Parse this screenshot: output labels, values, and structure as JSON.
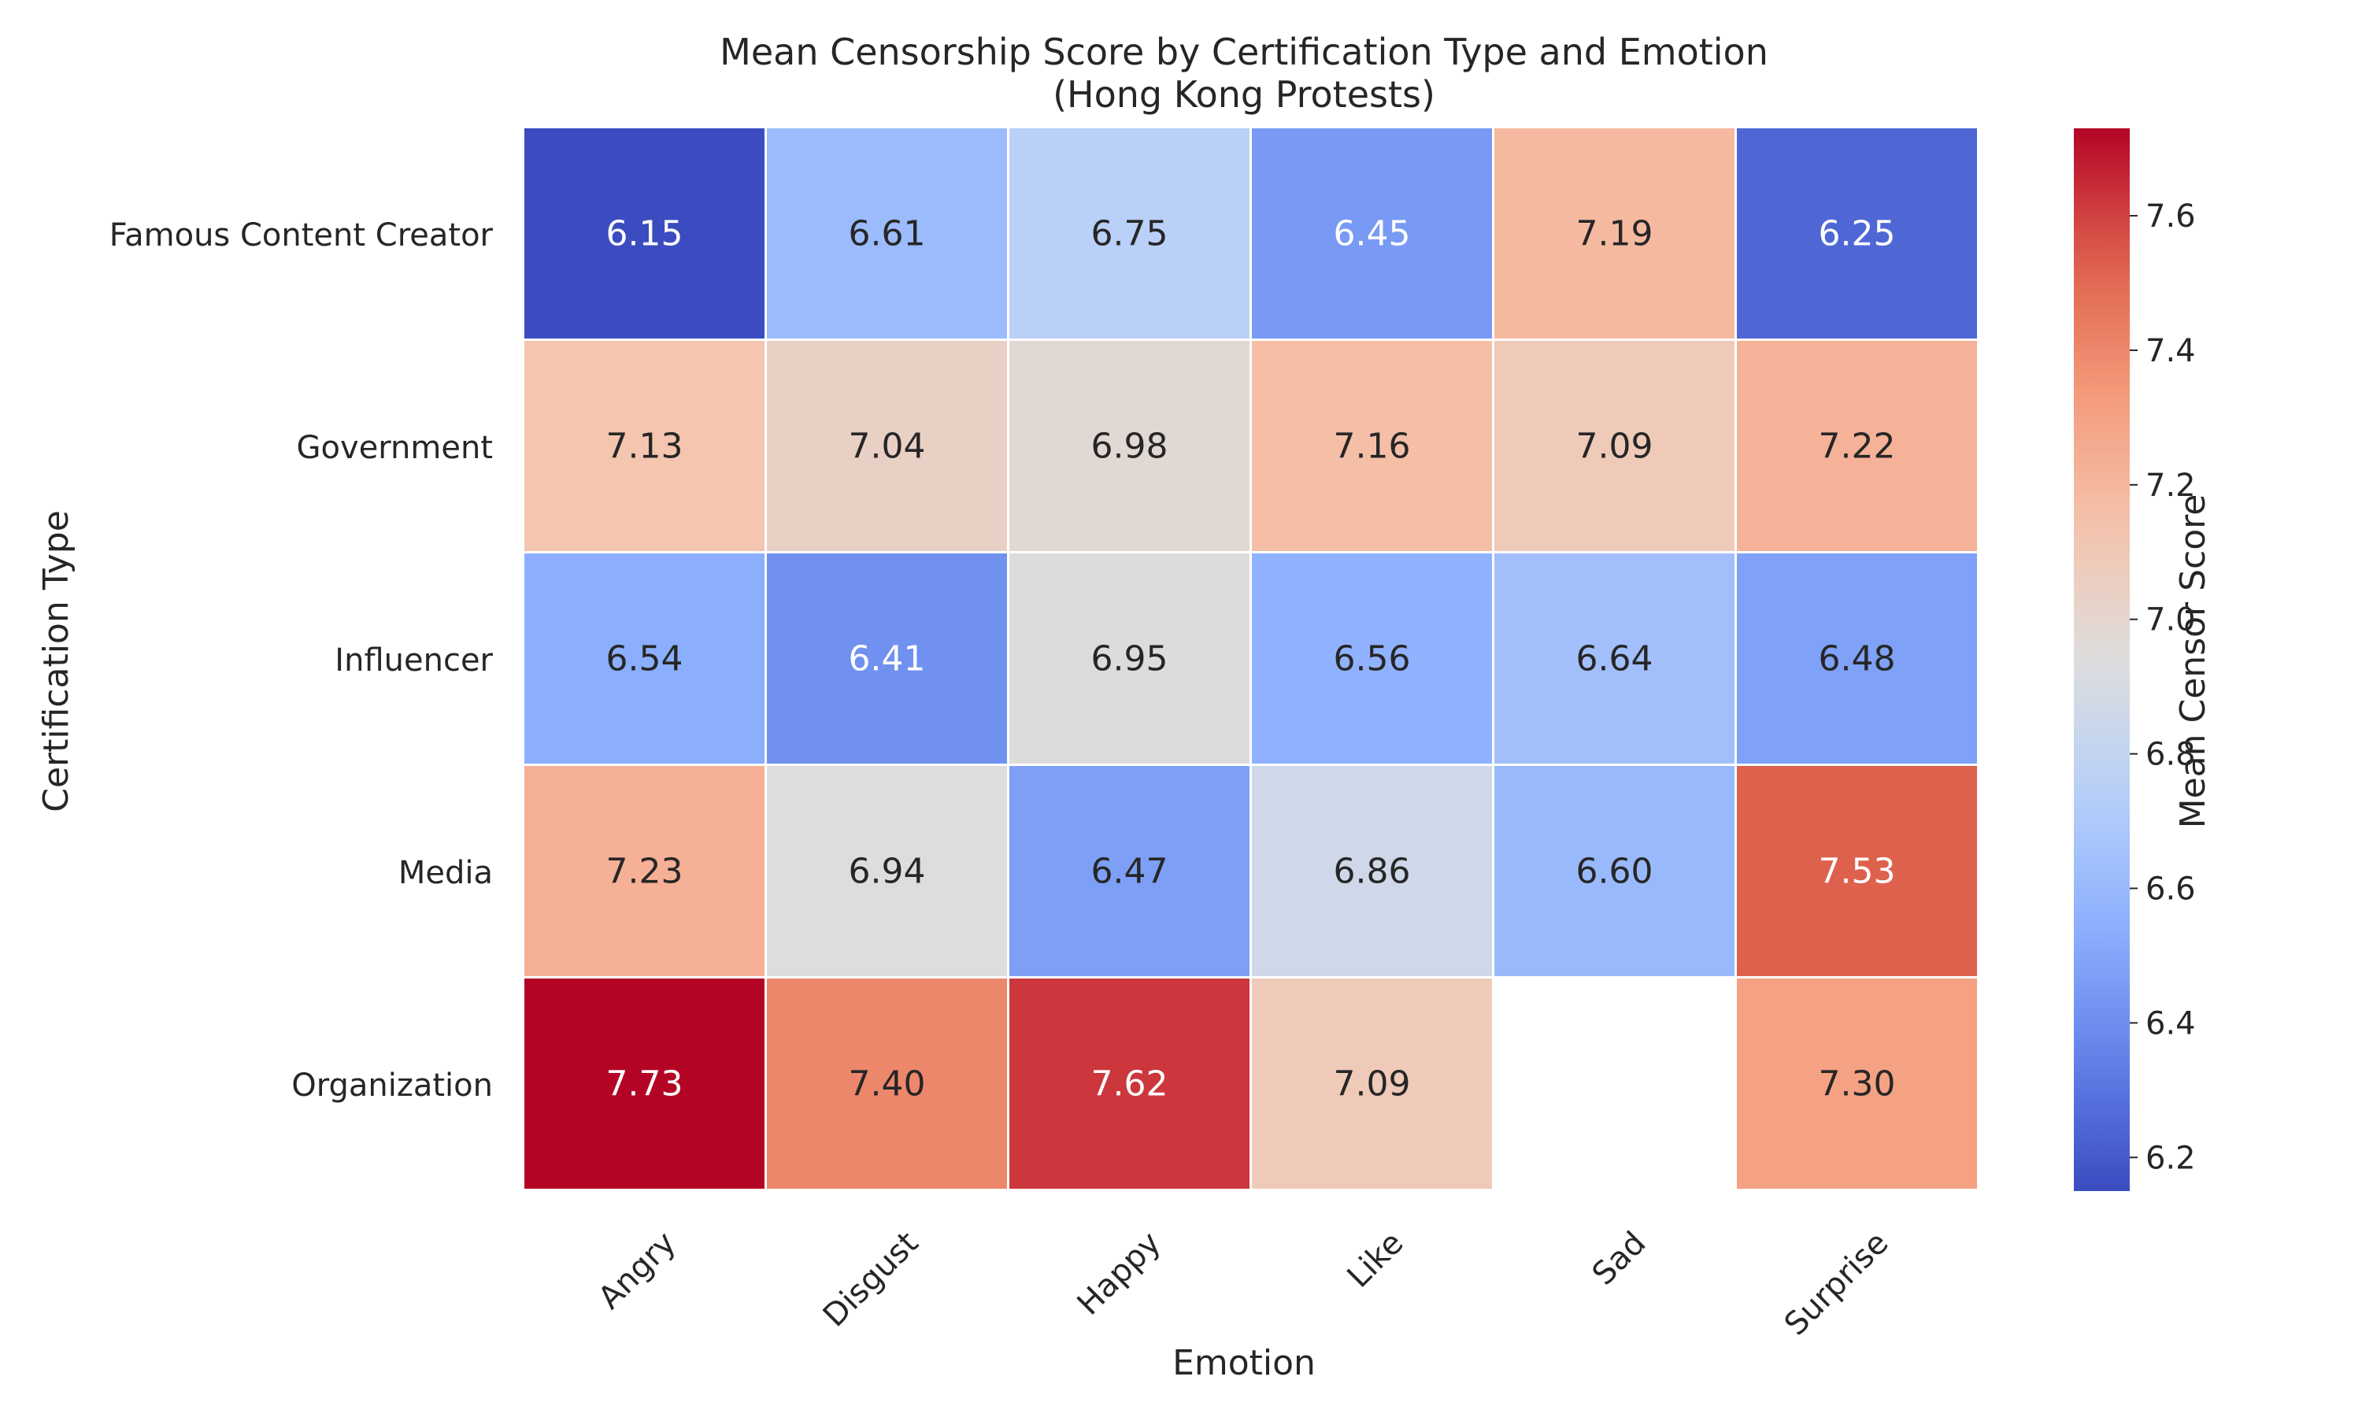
{
  "chart_data": {
    "type": "heatmap",
    "title": "Mean Censorship Score by Certification Type and Emotion",
    "subtitle": "(Hong Kong Protests)",
    "xlabel": "Emotion",
    "ylabel": "Certification Type",
    "x_categories": [
      "Angry",
      "Disgust",
      "Happy",
      "Like",
      "Sad",
      "Surprise"
    ],
    "y_categories": [
      "Famous Content Creator",
      "Government",
      "Influencer",
      "Media",
      "Organization"
    ],
    "values": [
      [
        6.15,
        6.61,
        6.75,
        6.45,
        7.19,
        6.25
      ],
      [
        7.13,
        7.04,
        6.98,
        7.16,
        7.09,
        7.22
      ],
      [
        6.54,
        6.41,
        6.95,
        6.56,
        6.64,
        6.48
      ],
      [
        7.23,
        6.94,
        6.47,
        6.86,
        6.6,
        7.53
      ],
      [
        7.73,
        7.4,
        7.62,
        7.09,
        null,
        7.3
      ]
    ],
    "value_format": "2 decimals",
    "colormap": "coolwarm",
    "vmin": 6.15,
    "vmax": 7.73,
    "colorbar": {
      "label": "Mean Censor Score",
      "ticks": [
        "6.2",
        "6.4",
        "6.6",
        "6.8",
        "7.0",
        "7.2",
        "7.4",
        "7.6"
      ]
    },
    "grid": false,
    "cell_border_color": "#ffffff"
  }
}
